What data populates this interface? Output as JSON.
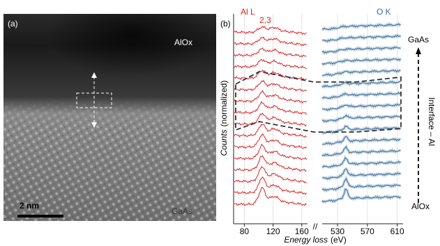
{
  "panel_a": {
    "label": "(a)",
    "top_label": "AlOx",
    "bottom_label": "GaAs",
    "scale_bar": "2 nm"
  },
  "panel_b": {
    "label": "(b)",
    "al_edge": "Al L",
    "al_edge_sub": "2,3",
    "o_edge": "O K",
    "y_label": "Counts",
    "y_label_rest": "(normalized)",
    "x_label": "Energy loss",
    "x_label_unit": "(eV)",
    "xlim_left": [
      66,
      168
    ],
    "xticks_left": [
      80,
      120,
      160
    ],
    "xlim_right": [
      515,
      615
    ],
    "xticks_right": [
      530,
      570,
      610
    ],
    "axis_break": "//",
    "top_end": "GaAs",
    "arrow_label": "Interface – Al",
    "bottom_end": "AlOx"
  }
}
